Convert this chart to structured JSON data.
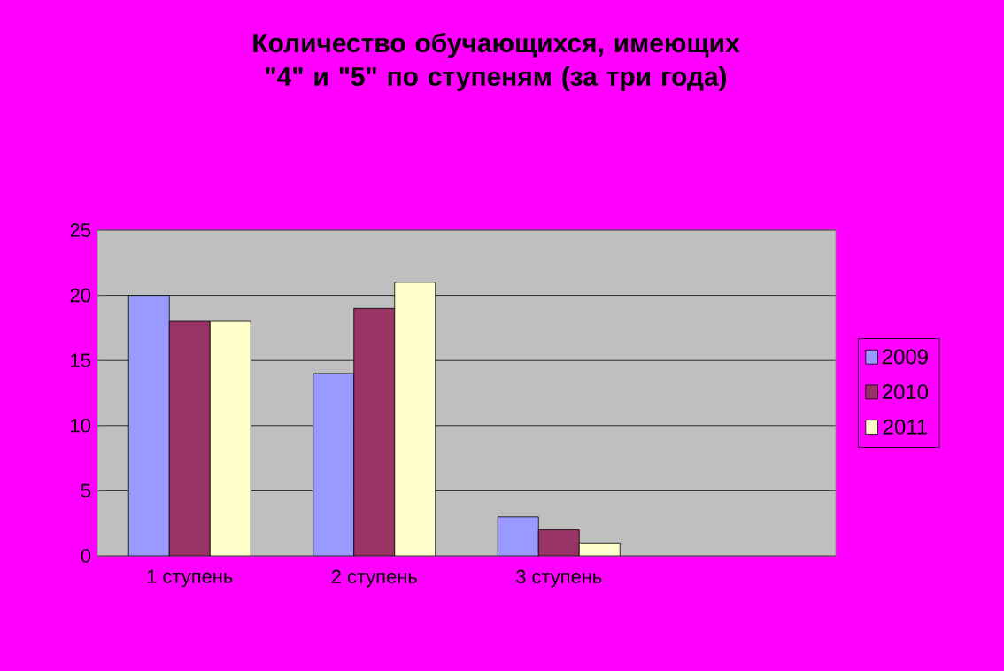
{
  "chart_data": {
    "type": "bar",
    "title": "Количество обучающихся, имеющих \"4\" и \"5\" по ступеням (за три года)",
    "categories": [
      "1 ступень",
      "2 ступень",
      "3 ступень",
      null
    ],
    "series": [
      {
        "name": "2009",
        "color": "#9999ff",
        "values": [
          20,
          14,
          3,
          null
        ]
      },
      {
        "name": "2010",
        "color": "#993366",
        "values": [
          18,
          19,
          2,
          null
        ]
      },
      {
        "name": "2011",
        "color": "#ffffcc",
        "values": [
          18,
          21,
          1,
          null
        ]
      }
    ],
    "ylim": [
      0,
      25
    ],
    "yticks": [
      0,
      5,
      10,
      15,
      20,
      25
    ],
    "grid": "y",
    "legend": "right"
  }
}
